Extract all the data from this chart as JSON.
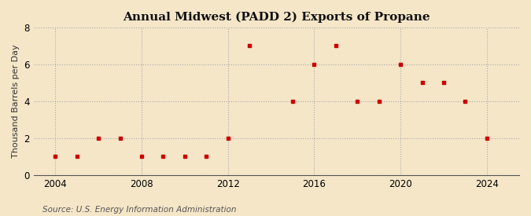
{
  "title": "Annual Midwest (PADD 2) Exports of Propane",
  "ylabel": "Thousand Barrels per Day",
  "source": "Source: U.S. Energy Information Administration",
  "background_color": "#f5e6c8",
  "plot_background_color": "#f5e6c8",
  "marker_color": "#cc0000",
  "years": [
    2004,
    2005,
    2006,
    2007,
    2008,
    2009,
    2010,
    2011,
    2012,
    2013,
    2015,
    2016,
    2017,
    2018,
    2019,
    2020,
    2021,
    2022,
    2023,
    2024
  ],
  "values": [
    1,
    1,
    2,
    2,
    1,
    1,
    1,
    1,
    2,
    7,
    4,
    6,
    7,
    4,
    4,
    6,
    5,
    5,
    4,
    2
  ],
  "xlim": [
    2003.0,
    2025.5
  ],
  "ylim": [
    0,
    8
  ],
  "yticks": [
    0,
    2,
    4,
    6,
    8
  ],
  "xticks": [
    2004,
    2008,
    2012,
    2016,
    2020,
    2024
  ],
  "grid_color": "#aaaaaa",
  "grid_style": ":",
  "title_fontsize": 11,
  "label_fontsize": 8,
  "tick_fontsize": 8.5,
  "source_fontsize": 7.5
}
